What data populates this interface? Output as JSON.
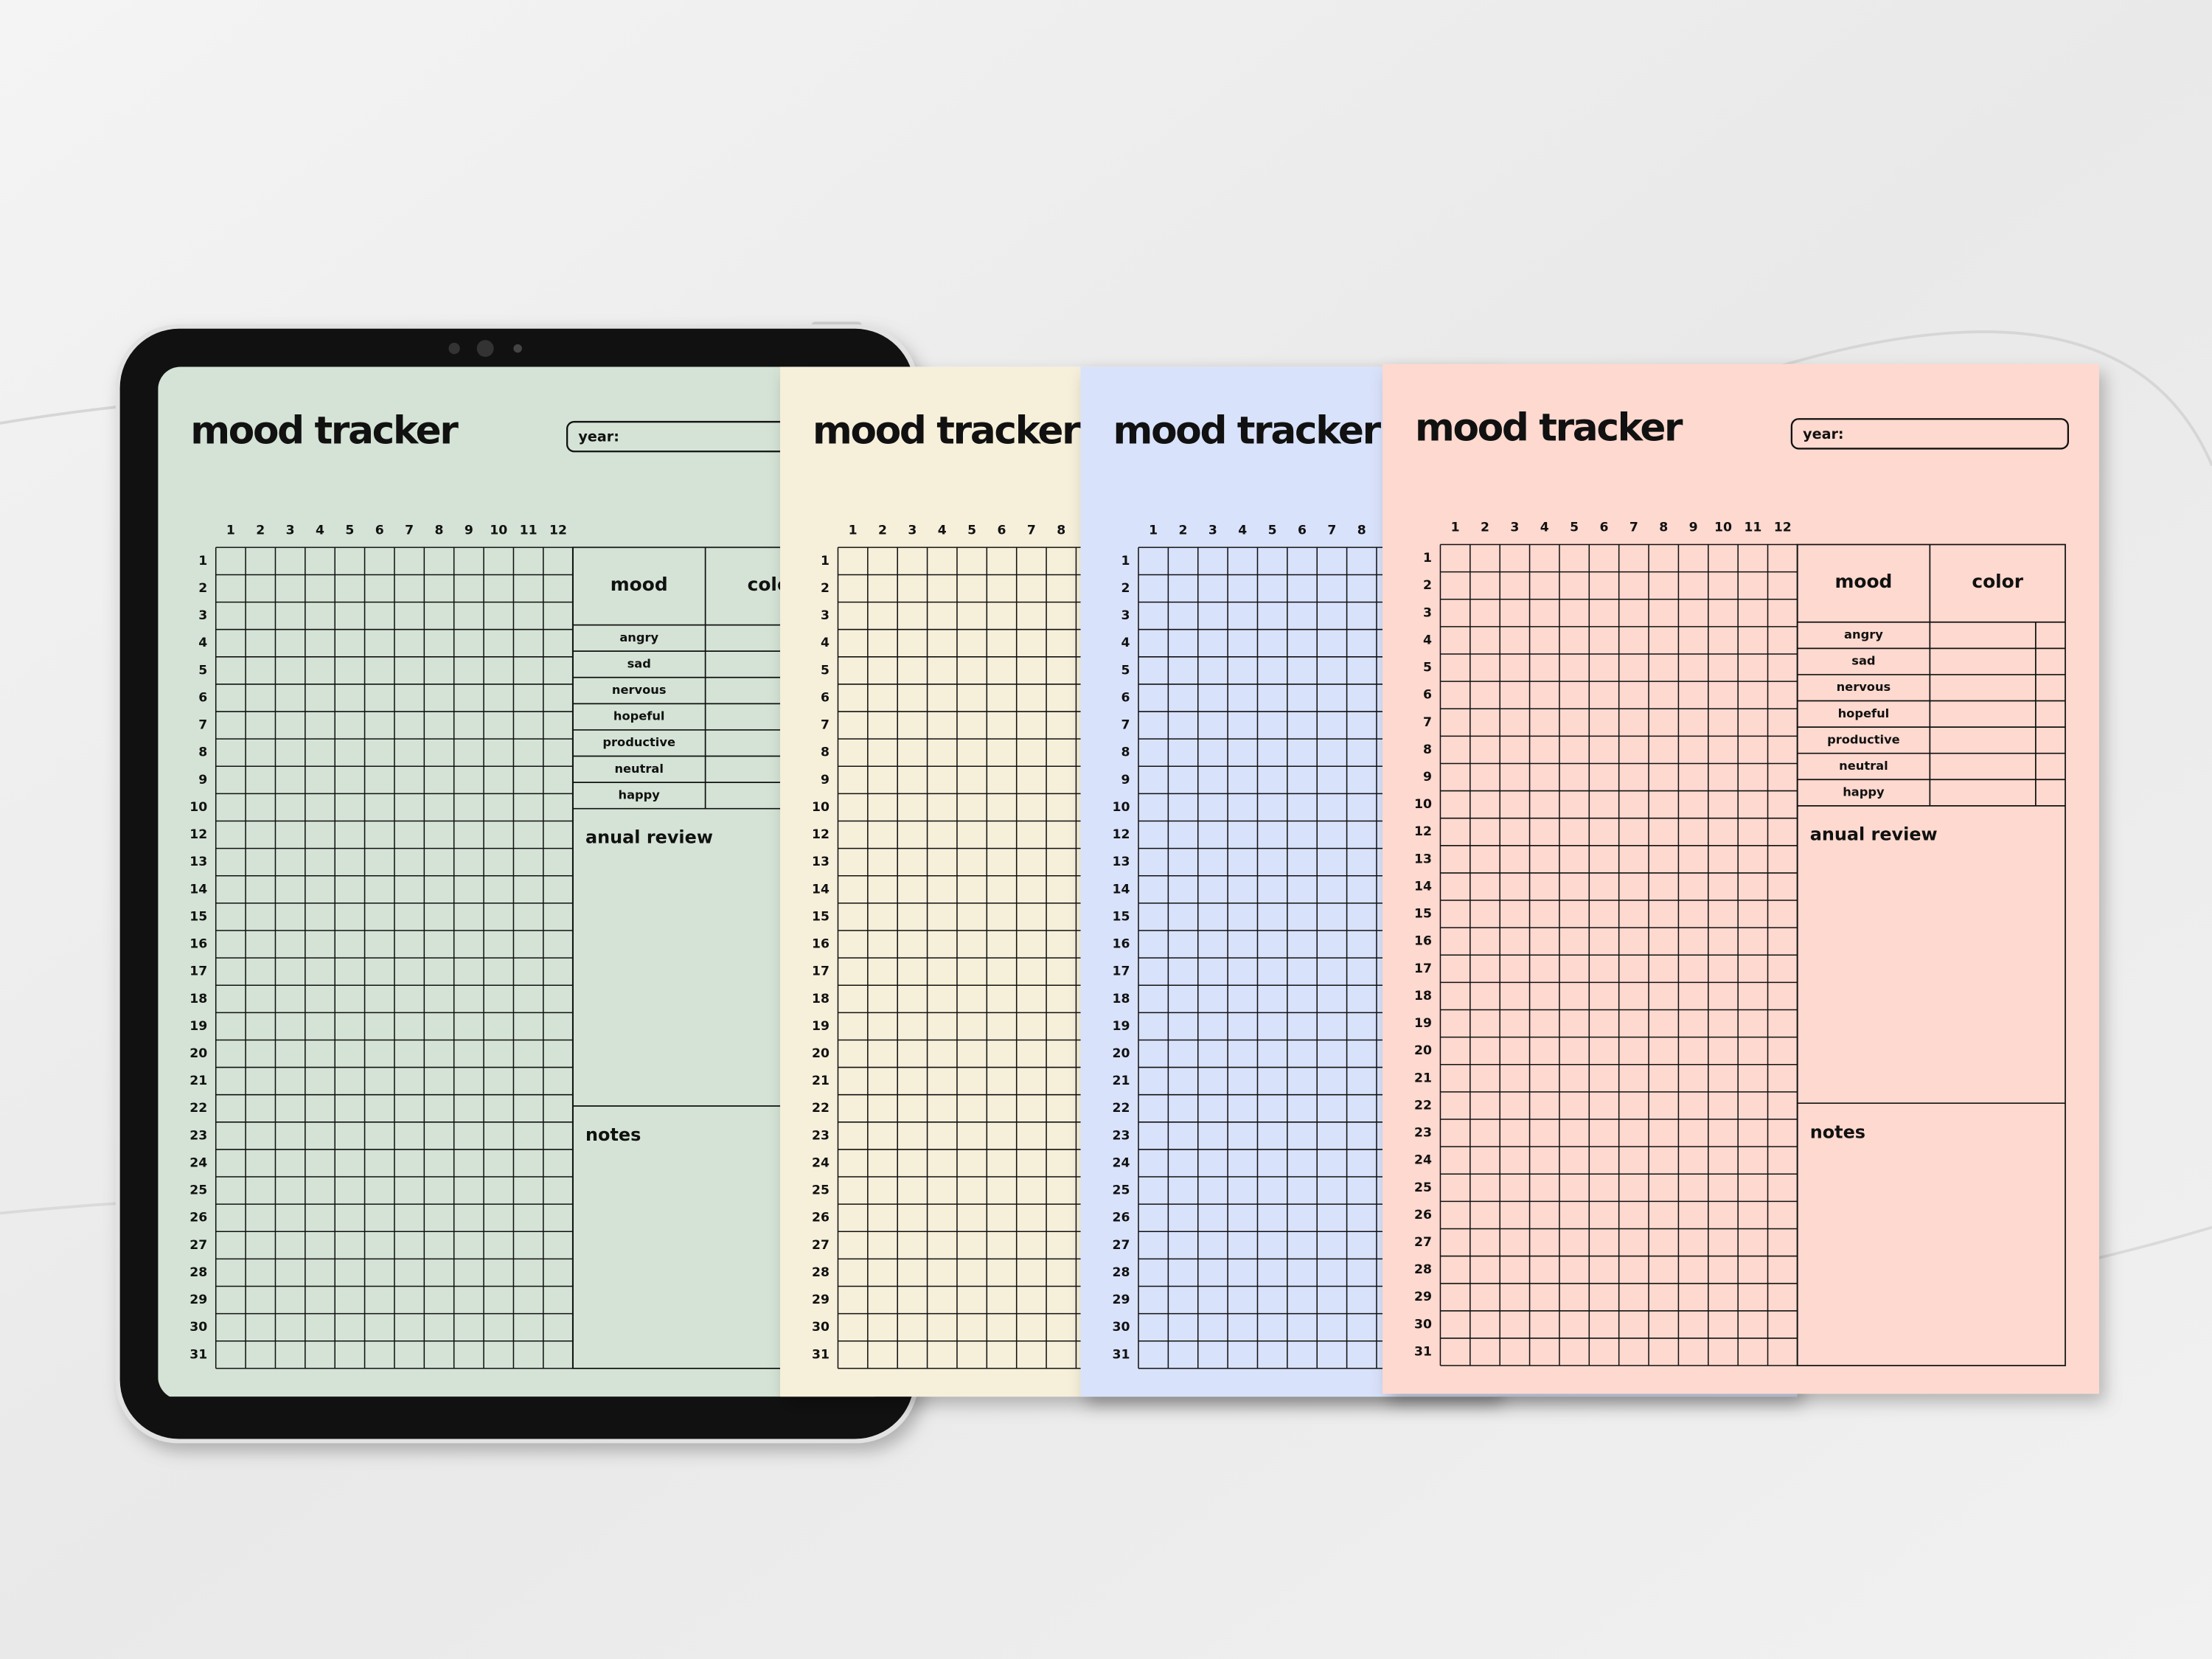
{
  "pages": [
    {
      "color": "#d4e3d5"
    },
    {
      "color": "#f6efda"
    },
    {
      "color": "#d9e2fb"
    },
    {
      "color": "#fdd9cf"
    }
  ],
  "title": "mood tracker",
  "year_label": "year:",
  "months": [
    1,
    2,
    3,
    4,
    5,
    6,
    7,
    8,
    9,
    10,
    11,
    12
  ],
  "days": [
    1,
    2,
    3,
    4,
    5,
    6,
    7,
    8,
    9,
    10,
    12,
    13,
    14,
    15,
    16,
    17,
    18,
    19,
    20,
    21,
    22,
    23,
    24,
    25,
    26,
    27,
    28,
    29,
    30,
    31
  ],
  "mood_header": "mood",
  "color_header": "color",
  "moods": [
    "angry",
    "sad",
    "nervous",
    "hopeful",
    "productive",
    "neutral",
    "happy"
  ],
  "review_label": "anual review",
  "notes_label": "notes"
}
